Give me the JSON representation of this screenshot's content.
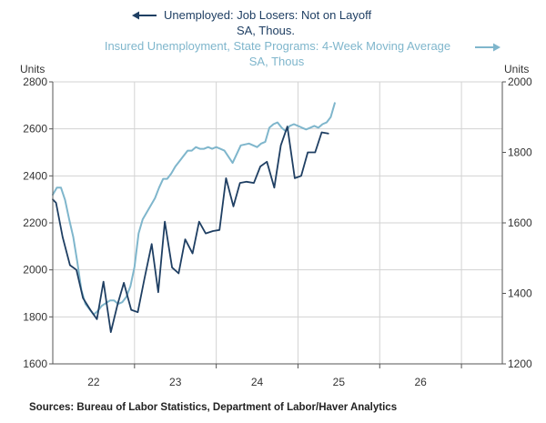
{
  "chart_data": {
    "type": "line",
    "legend": [
      {
        "line1": "Unemployed: Job Losers: Not on Layoff",
        "line2": "SA, Thous.",
        "axis": "left",
        "arrow": "left"
      },
      {
        "line1": "Insured Unemployment, State Programs: 4-Week Moving Average",
        "line2": "SA, Thous",
        "axis": "right",
        "arrow": "right"
      }
    ],
    "left_axis": {
      "unit": "Units",
      "min": 1600,
      "max": 2800,
      "ticks": [
        1600,
        1800,
        2000,
        2200,
        2400,
        2600,
        2800
      ]
    },
    "right_axis": {
      "unit": "Units",
      "min": 1200,
      "max": 2000,
      "ticks": [
        1200,
        1400,
        1600,
        1800,
        2000
      ]
    },
    "x_axis": {
      "min": 2021.5,
      "max": 2027.0,
      "labels": [
        {
          "text": "22",
          "at": 2022.0
        },
        {
          "text": "23",
          "at": 2023.0
        },
        {
          "text": "24",
          "at": 2024.0
        },
        {
          "text": "25",
          "at": 2025.0
        },
        {
          "text": "26",
          "at": 2026.0
        }
      ],
      "boundaries": [
        2022.5,
        2023.5,
        2024.5,
        2025.5,
        2026.5
      ]
    },
    "grid": true,
    "series": [
      {
        "name": "Unemployed: Job Losers: Not on Layoff",
        "axis": "left",
        "color": "#1f3f63",
        "x": [
          2021.5,
          2021.54,
          2021.62,
          2021.71,
          2021.79,
          2021.87,
          2021.96,
          2022.04,
          2022.12,
          2022.21,
          2022.29,
          2022.37,
          2022.46,
          2022.54,
          2022.62,
          2022.71,
          2022.79,
          2022.87,
          2022.96,
          2023.04,
          2023.12,
          2023.21,
          2023.29,
          2023.37,
          2023.46,
          2023.54,
          2023.62,
          2023.71,
          2023.79,
          2023.87,
          2023.96,
          2024.04,
          2024.12,
          2024.21,
          2024.29,
          2024.37,
          2024.46,
          2024.54,
          2024.62,
          2024.71,
          2024.79,
          2024.87
        ],
        "y": [
          2300,
          2285,
          2140,
          2020,
          2000,
          1880,
          1830,
          1790,
          1950,
          1735,
          1850,
          1945,
          1830,
          1820,
          1960,
          2110,
          1905,
          2205,
          2010,
          1985,
          2130,
          2070,
          2205,
          2155,
          2165,
          2170,
          2390,
          2270,
          2370,
          2375,
          2370,
          2440,
          2460,
          2350,
          2530,
          2610,
          2390,
          2400,
          2500,
          2500,
          2585,
          2580
        ]
      },
      {
        "name": "Insured Unemployment, State Programs: 4-Week Moving Average",
        "axis": "right",
        "color": "#7fb6cc",
        "x": [
          2021.5,
          2021.55,
          2021.6,
          2021.65,
          2021.7,
          2021.75,
          2021.8,
          2021.85,
          2021.9,
          2022.0,
          2022.05,
          2022.1,
          2022.2,
          2022.25,
          2022.3,
          2022.35,
          2022.4,
          2022.45,
          2022.5,
          2022.55,
          2022.6,
          2022.7,
          2022.75,
          2022.8,
          2022.85,
          2022.9,
          2022.95,
          2023.0,
          2023.05,
          2023.1,
          2023.15,
          2023.2,
          2023.25,
          2023.3,
          2023.35,
          2023.4,
          2023.45,
          2023.5,
          2023.55,
          2023.6,
          2023.7,
          2023.8,
          2023.9,
          2024.0,
          2024.05,
          2024.1,
          2024.15,
          2024.2,
          2024.25,
          2024.3,
          2024.35,
          2024.4,
          2024.45,
          2024.5,
          2024.55,
          2024.6,
          2024.65,
          2024.7,
          2024.75,
          2024.8,
          2024.85,
          2024.9,
          2024.95
        ],
        "y": [
          1680,
          1700,
          1700,
          1665,
          1610,
          1560,
          1490,
          1410,
          1370,
          1340,
          1350,
          1365,
          1380,
          1380,
          1370,
          1375,
          1390,
          1420,
          1475,
          1570,
          1610,
          1650,
          1670,
          1700,
          1725,
          1725,
          1740,
          1760,
          1775,
          1790,
          1805,
          1805,
          1815,
          1810,
          1810,
          1815,
          1810,
          1815,
          1810,
          1805,
          1770,
          1820,
          1825,
          1815,
          1825,
          1830,
          1870,
          1880,
          1885,
          1870,
          1860,
          1875,
          1880,
          1875,
          1870,
          1865,
          1870,
          1875,
          1870,
          1880,
          1885,
          1900,
          1940
        ]
      }
    ],
    "source": "Sources:  Bureau of Labor Statistics, Department of Labor/Haver Analytics"
  }
}
